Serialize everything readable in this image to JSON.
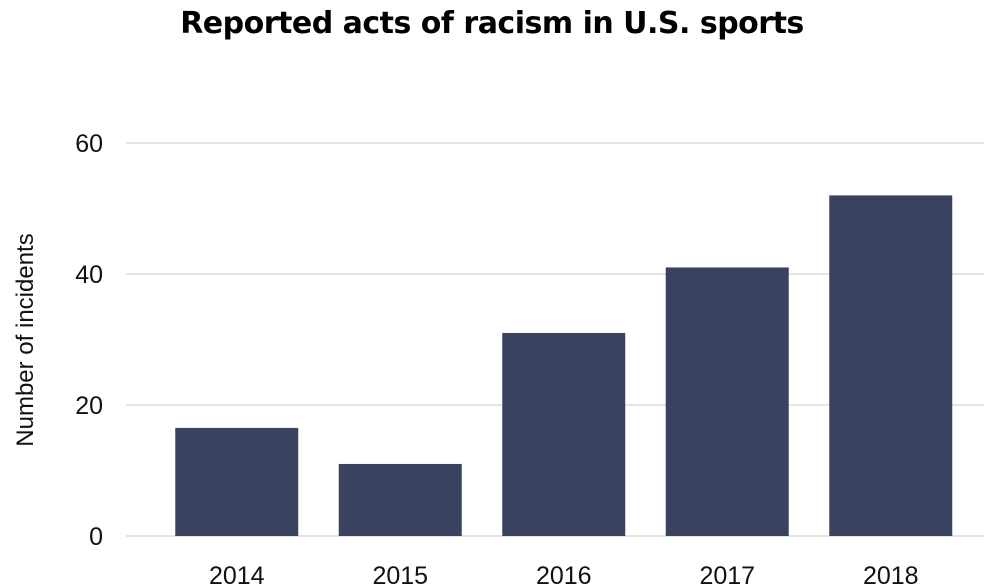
{
  "chart_data": {
    "type": "bar",
    "title": "Reported acts of racism in U.S. sports",
    "xlabel": "",
    "ylabel": "Number of incidents",
    "categories": [
      "2014",
      "2015",
      "2016",
      "2017",
      "2018"
    ],
    "values": [
      16.5,
      11,
      31,
      41,
      52
    ],
    "ylim": [
      0,
      60
    ],
    "yticks": [
      0,
      20,
      40,
      60
    ],
    "grid": true,
    "legend": "none",
    "bar_color": "#394360",
    "grid_color": "#c8c8c8"
  }
}
